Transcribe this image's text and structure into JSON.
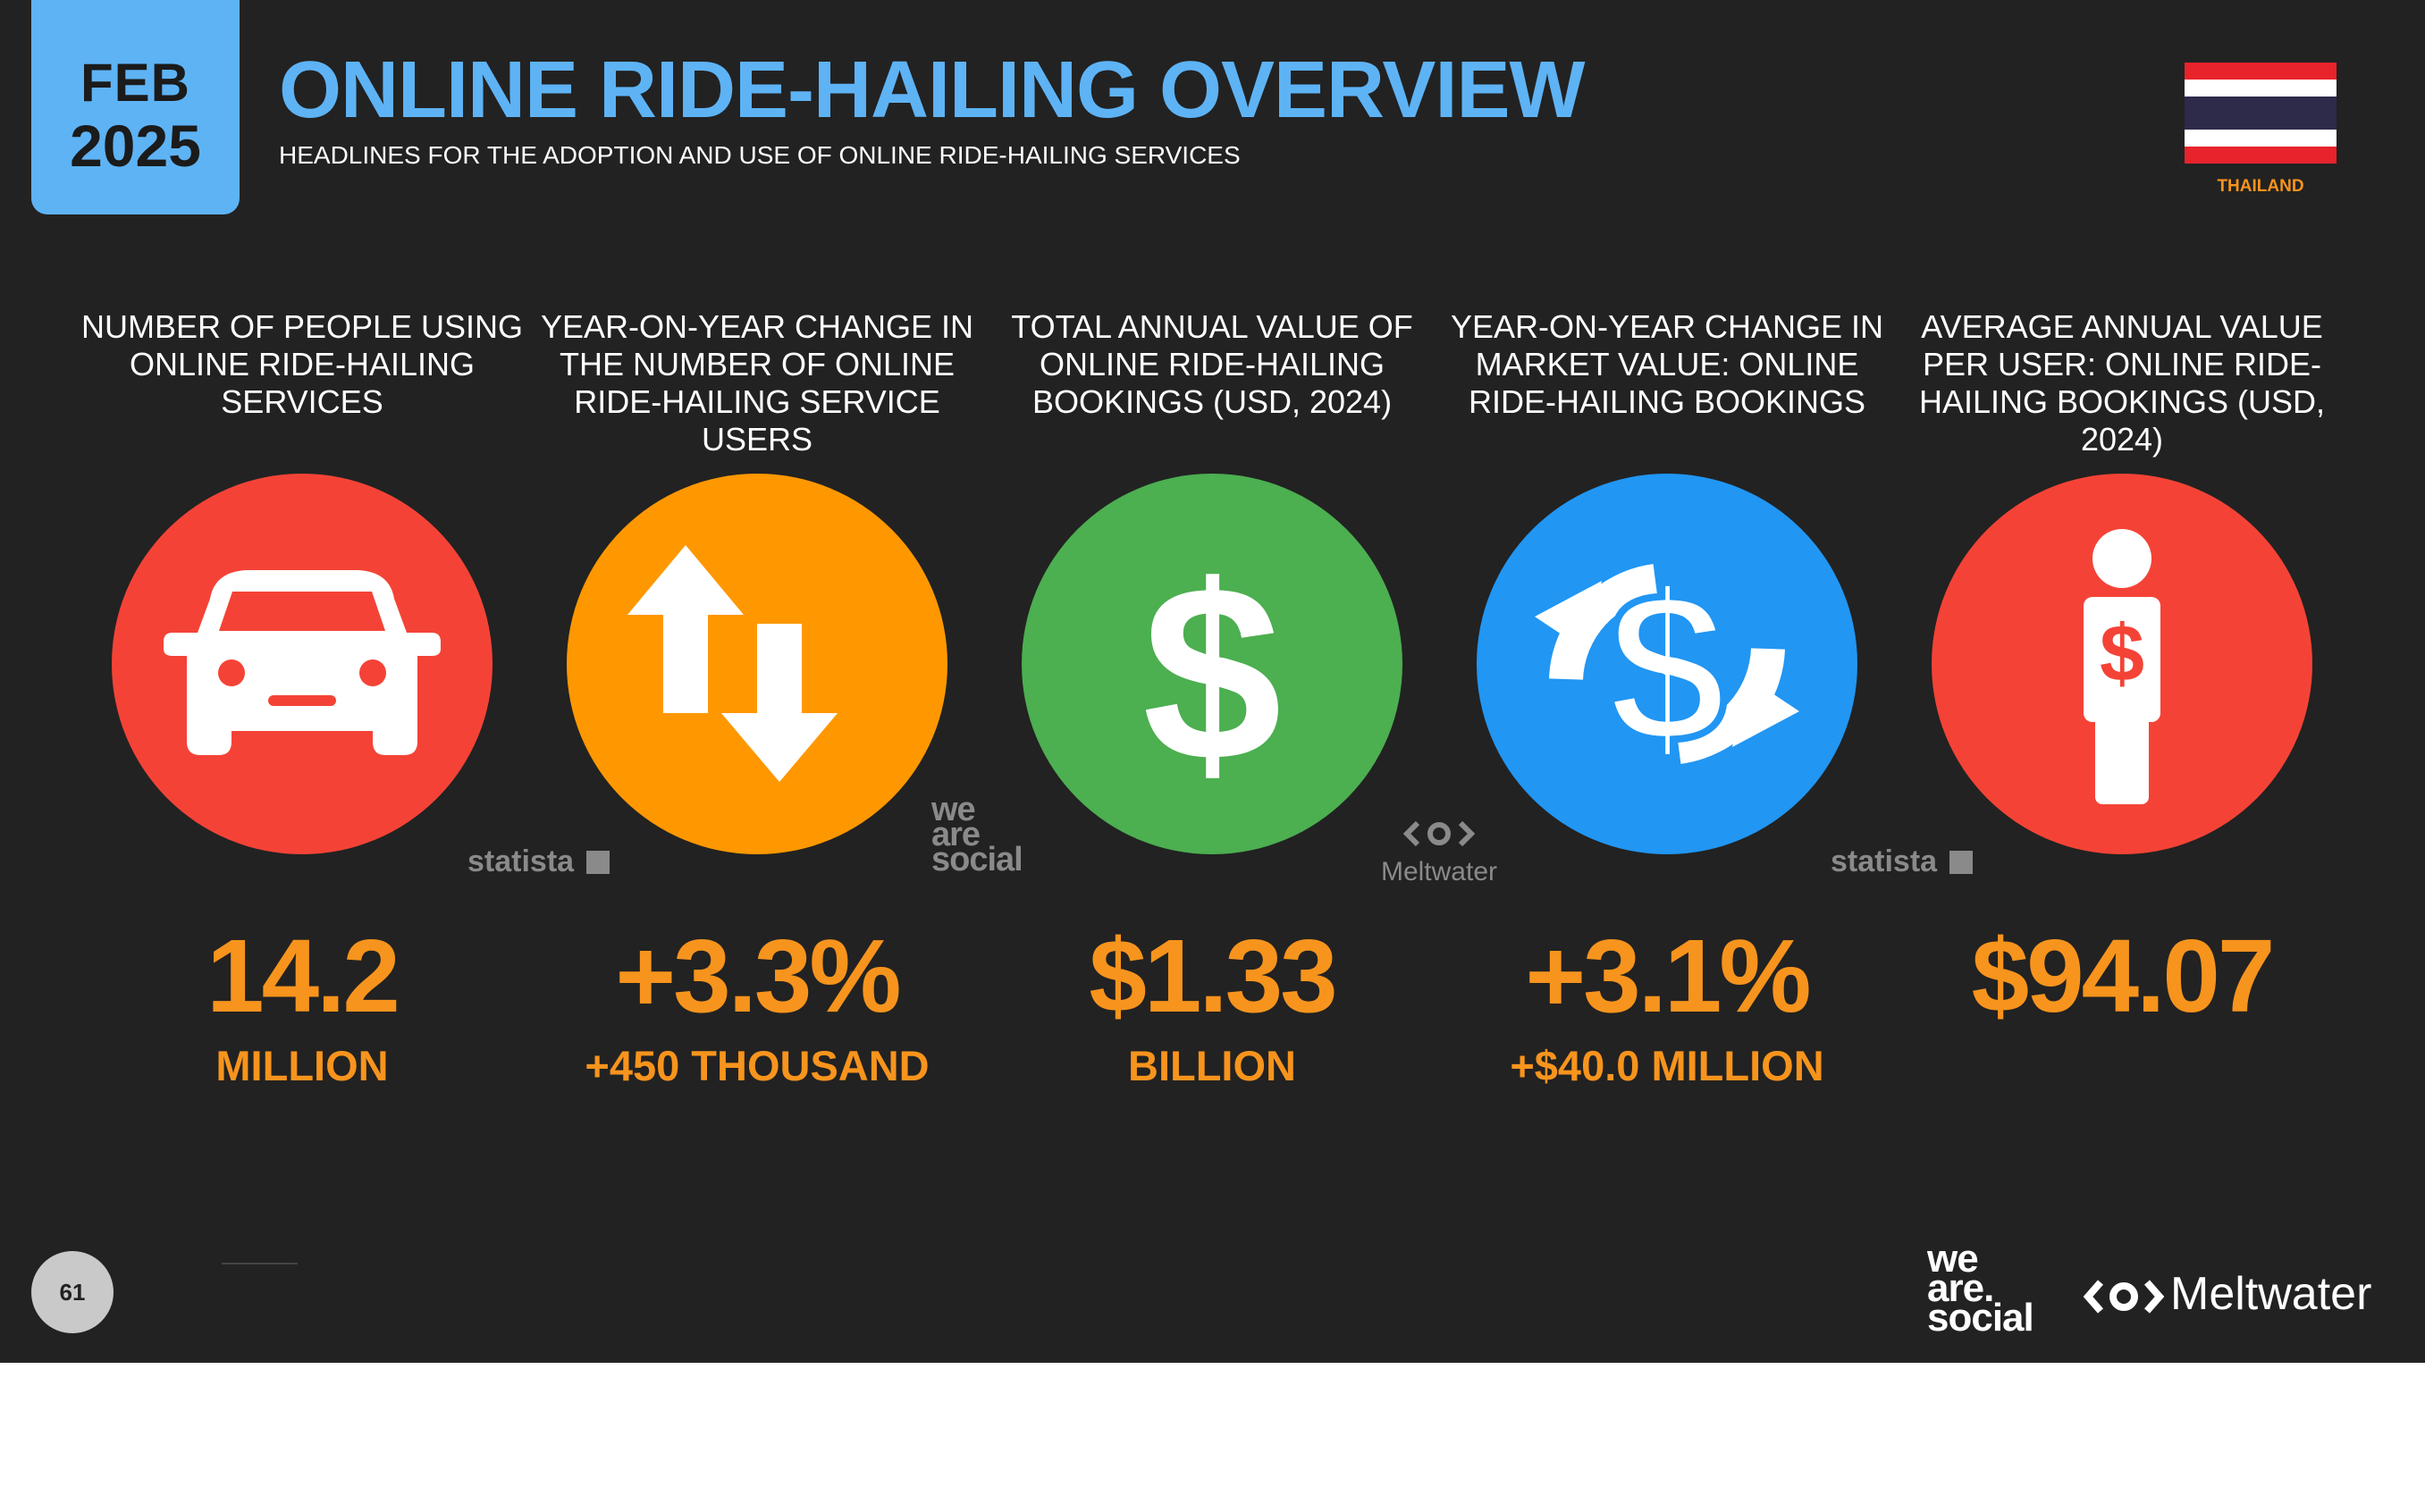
{
  "header": {
    "date_month": "FEB",
    "date_year": "2025",
    "title": "ONLINE RIDE-HAILING OVERVIEW",
    "subtitle": "HEADLINES FOR THE ADOPTION AND USE OF ONLINE RIDE-HAILING SERVICES",
    "country": "THAILAND"
  },
  "colors": {
    "background": "#222222",
    "accent_blue": "#5eb3f5",
    "value_orange": "#f7941d",
    "circle_red": "#f44336",
    "circle_orange": "#ff9800",
    "circle_green": "#4caf50",
    "circle_blue": "#2196f3"
  },
  "stats": [
    {
      "label": "NUMBER OF PEOPLE USING ONLINE RIDE-HAILING SERVICES",
      "icon": "car-icon",
      "color": "#f44336",
      "value": "14.2",
      "sub": "MILLION"
    },
    {
      "label": "YEAR-ON-YEAR CHANGE IN THE NUMBER OF ONLINE RIDE-HAILING SERVICE USERS",
      "icon": "up-down-arrows-icon",
      "color": "#ff9800",
      "value": "+3.3%",
      "sub": "+450 THOUSAND"
    },
    {
      "label": "TOTAL ANNUAL VALUE OF ONLINE RIDE-HAILING BOOKINGS (USD, 2024)",
      "icon": "dollar-icon",
      "color": "#4caf50",
      "value": "$1.33",
      "sub": "BILLION"
    },
    {
      "label": "YEAR-ON-YEAR CHANGE IN MARKET VALUE: ONLINE RIDE-HAILING BOOKINGS",
      "icon": "dollar-cycle-icon",
      "color": "#2196f3",
      "value": "+3.1%",
      "sub": "+$40.0 MILLION"
    },
    {
      "label": "AVERAGE ANNUAL VALUE PER USER: ONLINE RIDE-HAILING BOOKINGS (USD, 2024)",
      "icon": "person-dollar-icon",
      "color": "#f44336",
      "value": "$94.07",
      "sub": ""
    }
  ],
  "sources": {
    "s1": "statista",
    "s2_line1": "we",
    "s2_line2": "are",
    "s2_line3": "social",
    "s3": "Meltwater",
    "s4": "statista"
  },
  "footer": {
    "page_number": "61",
    "logo_was_1": "we",
    "logo_was_2": "are.",
    "logo_was_3": "social",
    "logo_mw": "Meltwater"
  }
}
